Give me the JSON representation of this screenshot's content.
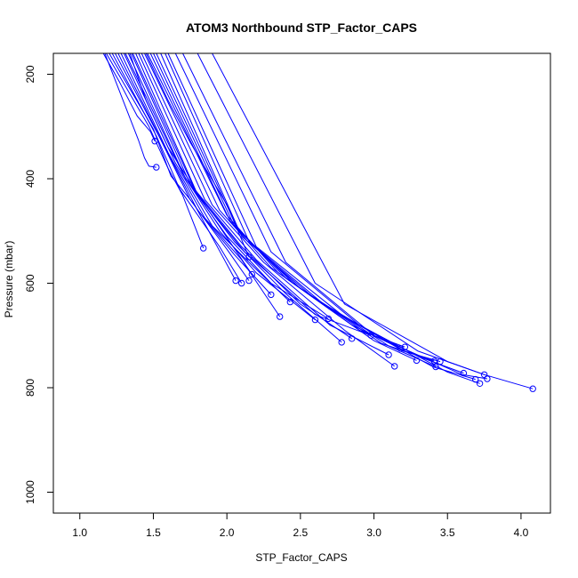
{
  "chart_data": {
    "type": "line",
    "title": "ATOM3 Northbound STP_Factor_CAPS",
    "xlabel": "STP_Factor_CAPS",
    "ylabel": "Pressure (mbar)",
    "xlim": [
      0.82,
      4.2
    ],
    "ylim": [
      1040,
      160
    ],
    "y_axis_reversed": true,
    "x_ticks": [
      1.0,
      1.5,
      2.0,
      2.5,
      3.0,
      3.5,
      4.0
    ],
    "x_tick_labels": [
      "1.0",
      "1.5",
      "2.0",
      "2.5",
      "3.0",
      "3.5",
      "4.0"
    ],
    "y_ticks": [
      200,
      400,
      600,
      800,
      1000
    ],
    "y_tick_labels": [
      "200",
      "400",
      "600",
      "800",
      "1000"
    ],
    "grid": false,
    "legend": "none",
    "series_color": "#0000ff",
    "marker": "open-circle",
    "series": [
      {
        "values": [
          [
            1.17,
            160
          ],
          [
            1.4,
            327
          ],
          [
            1.44,
            360
          ],
          [
            1.47,
            376
          ],
          [
            1.52,
            378
          ]
        ]
      },
      {
        "values": [
          [
            1.16,
            160
          ],
          [
            1.27,
            215
          ],
          [
            1.39,
            280
          ],
          [
            1.48,
            310
          ],
          [
            1.51,
            328
          ]
        ]
      },
      {
        "values": [
          [
            1.18,
            160
          ],
          [
            1.47,
            300
          ],
          [
            1.6,
            380
          ],
          [
            1.7,
            432
          ],
          [
            1.84,
            533
          ]
        ]
      },
      {
        "values": [
          [
            1.2,
            160
          ],
          [
            1.5,
            305
          ],
          [
            1.62,
            395
          ],
          [
            1.78,
            450
          ],
          [
            2.06,
            595
          ]
        ]
      },
      {
        "values": [
          [
            1.22,
            160
          ],
          [
            1.52,
            318
          ],
          [
            1.68,
            420
          ],
          [
            1.95,
            530
          ],
          [
            2.1,
            600
          ]
        ]
      },
      {
        "values": [
          [
            1.24,
            160
          ],
          [
            1.55,
            325
          ],
          [
            1.75,
            440
          ],
          [
            2.0,
            535
          ],
          [
            2.15,
            595
          ]
        ]
      },
      {
        "values": [
          [
            1.26,
            160
          ],
          [
            1.56,
            330
          ],
          [
            1.8,
            460
          ],
          [
            2.05,
            545
          ],
          [
            2.3,
            622
          ]
        ]
      },
      {
        "values": [
          [
            1.28,
            160
          ],
          [
            1.6,
            350
          ],
          [
            1.85,
            475
          ],
          [
            2.1,
            555
          ],
          [
            2.36,
            664
          ]
        ]
      },
      {
        "values": [
          [
            1.3,
            160
          ],
          [
            1.65,
            370
          ],
          [
            1.9,
            490
          ],
          [
            2.15,
            560
          ],
          [
            2.43,
            636
          ]
        ]
      },
      {
        "values": [
          [
            1.31,
            160
          ],
          [
            1.7,
            390
          ],
          [
            1.95,
            500
          ],
          [
            2.2,
            580
          ],
          [
            2.6,
            670
          ]
        ]
      },
      {
        "values": [
          [
            1.33,
            160
          ],
          [
            1.72,
            400
          ],
          [
            2.0,
            510
          ],
          [
            2.3,
            600
          ],
          [
            2.69,
            668
          ]
        ]
      },
      {
        "values": [
          [
            1.35,
            160
          ],
          [
            1.75,
            410
          ],
          [
            2.05,
            520
          ],
          [
            2.4,
            620
          ],
          [
            2.78,
            713
          ]
        ]
      },
      {
        "values": [
          [
            1.36,
            160
          ],
          [
            1.78,
            420
          ],
          [
            2.1,
            530
          ],
          [
            2.5,
            640
          ],
          [
            2.85,
            706
          ]
        ]
      },
      {
        "values": [
          [
            1.38,
            160
          ],
          [
            1.8,
            430
          ],
          [
            2.12,
            540
          ],
          [
            2.6,
            660
          ],
          [
            2.98,
            700
          ]
        ]
      },
      {
        "values": [
          [
            1.4,
            160
          ],
          [
            1.85,
            440
          ],
          [
            2.2,
            555
          ],
          [
            2.7,
            680
          ],
          [
            3.1,
            737
          ]
        ]
      },
      {
        "values": [
          [
            1.42,
            160
          ],
          [
            1.9,
            450
          ],
          [
            2.25,
            560
          ],
          [
            2.8,
            690
          ],
          [
            3.14,
            759
          ]
        ]
      },
      {
        "values": [
          [
            1.44,
            160
          ],
          [
            1.95,
            460
          ],
          [
            2.3,
            570
          ],
          [
            2.85,
            680
          ],
          [
            3.18,
            725
          ]
        ]
      },
      {
        "values": [
          [
            1.46,
            160
          ],
          [
            2.0,
            470
          ],
          [
            2.35,
            580
          ],
          [
            2.9,
            690
          ],
          [
            3.21,
            722
          ]
        ]
      },
      {
        "values": [
          [
            1.48,
            160
          ],
          [
            2.02,
            480
          ],
          [
            2.4,
            590
          ],
          [
            3.0,
            710
          ],
          [
            3.29,
            748
          ]
        ]
      },
      {
        "values": [
          [
            1.5,
            160
          ],
          [
            2.05,
            490
          ],
          [
            2.45,
            600
          ],
          [
            3.05,
            715
          ],
          [
            3.41,
            749
          ]
        ]
      },
      {
        "values": [
          [
            1.52,
            160
          ],
          [
            2.08,
            500
          ],
          [
            2.5,
            610
          ],
          [
            3.1,
            720
          ],
          [
            3.42,
            760
          ]
        ]
      },
      {
        "values": [
          [
            1.55,
            160
          ],
          [
            2.1,
            510
          ],
          [
            2.6,
            630
          ],
          [
            3.2,
            730
          ],
          [
            3.45,
            750
          ]
        ]
      },
      {
        "values": [
          [
            1.58,
            160
          ],
          [
            2.15,
            520
          ],
          [
            2.7,
            650
          ],
          [
            3.3,
            740
          ],
          [
            3.61,
            772
          ]
        ]
      },
      {
        "values": [
          [
            1.6,
            160
          ],
          [
            2.2,
            530
          ],
          [
            2.8,
            665
          ],
          [
            3.4,
            760
          ],
          [
            3.69,
            784
          ]
        ]
      },
      {
        "values": [
          [
            1.65,
            160
          ],
          [
            2.3,
            540
          ],
          [
            2.9,
            680
          ],
          [
            3.5,
            770
          ],
          [
            3.72,
            792
          ]
        ]
      },
      {
        "values": [
          [
            1.7,
            160
          ],
          [
            2.4,
            560
          ],
          [
            3.0,
            700
          ],
          [
            3.6,
            775
          ],
          [
            3.77,
            783
          ]
        ]
      },
      {
        "values": [
          [
            1.8,
            160
          ],
          [
            2.6,
            600
          ],
          [
            3.3,
            730
          ],
          [
            3.75,
            775
          ],
          [
            4.08,
            802
          ]
        ]
      },
      {
        "values": [
          [
            1.9,
            160
          ],
          [
            2.8,
            640
          ],
          [
            3.5,
            750
          ],
          [
            3.75,
            775
          ]
        ]
      },
      {
        "values": [
          [
            1.45,
            160
          ],
          [
            1.6,
            250
          ],
          [
            1.75,
            330
          ],
          [
            2.0,
            450
          ],
          [
            2.15,
            550
          ]
        ]
      },
      {
        "values": [
          [
            1.34,
            160
          ],
          [
            1.45,
            250
          ],
          [
            1.6,
            340
          ],
          [
            1.85,
            450
          ],
          [
            2.17,
            583
          ]
        ]
      }
    ]
  }
}
